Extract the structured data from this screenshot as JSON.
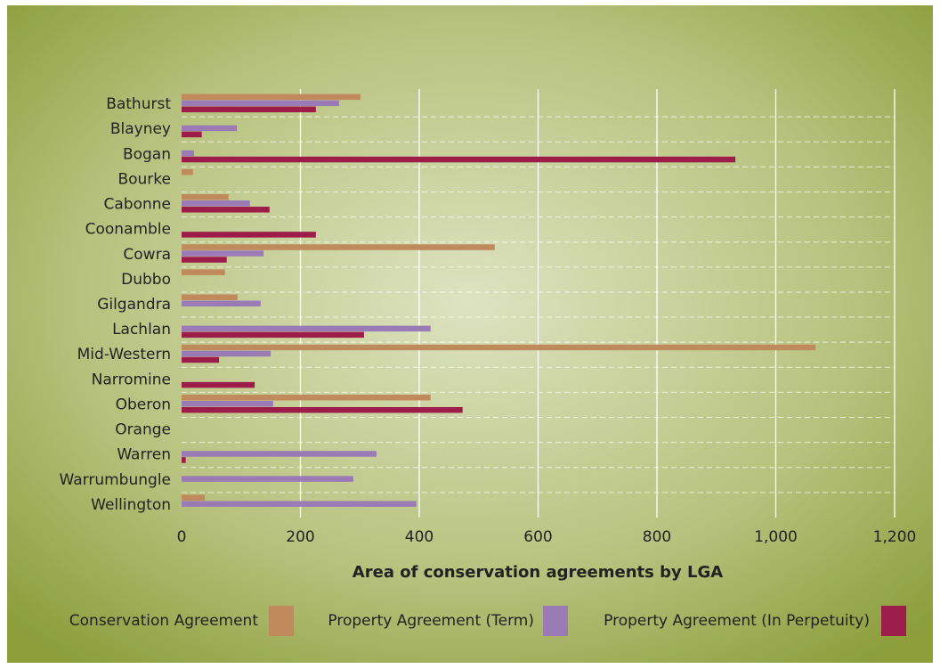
{
  "chart_data": {
    "type": "bar",
    "orientation": "horizontal",
    "x_label": "Area of conservation agreements by LGA",
    "categories": [
      "Bathurst",
      "Blayney",
      "Bogan",
      "Bourke",
      "Cabonne",
      "Coonamble",
      "Cowra",
      "Dubbo",
      "Gilgandra",
      "Lachlan",
      "Mid-Western",
      "Narromine",
      "Oberon",
      "Orange",
      "Warren",
      "Warrumbungle",
      "Wellington"
    ],
    "series": [
      {
        "name": "Conservation Agreement",
        "color": "#c08a5c",
        "values": [
          301,
          null,
          null,
          19,
          79,
          null,
          527,
          73,
          94,
          null,
          1067,
          null,
          419,
          null,
          null,
          null,
          39
        ]
      },
      {
        "name": "Property Agreement (Term)",
        "color": "#9b7bb5",
        "values": [
          265,
          93,
          21,
          null,
          115,
          null,
          138,
          null,
          133,
          419,
          150,
          null,
          154,
          null,
          328,
          289,
          395
        ]
      },
      {
        "name": "Property Agreement (In Perpetuity)",
        "color": "#9c1c4a",
        "values": [
          226,
          34,
          932,
          null,
          148,
          226,
          76,
          null,
          null,
          307,
          63,
          123,
          473,
          null,
          7,
          null,
          null
        ]
      }
    ],
    "xlim": [
      0,
      1200
    ],
    "xticks": [
      0,
      200,
      400,
      600,
      800,
      {
        "value": 1000,
        "label": "1,000"
      },
      {
        "value": 1200,
        "label": "1,200"
      }
    ],
    "grid": true,
    "legend": "bottom"
  }
}
